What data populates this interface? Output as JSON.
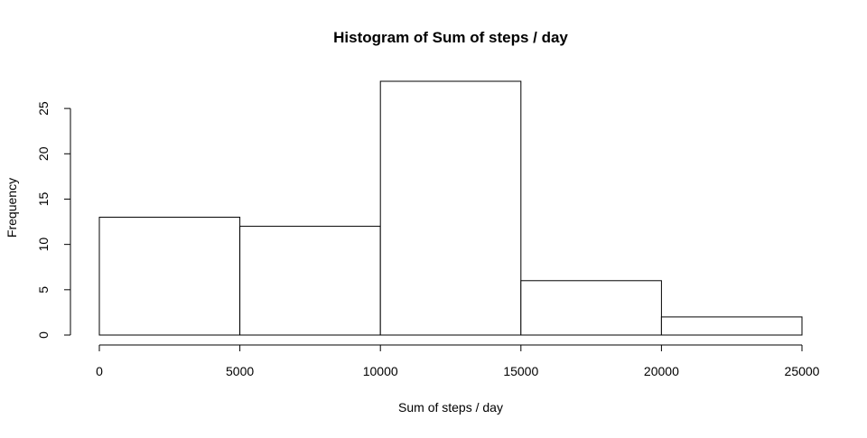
{
  "chart_data": {
    "type": "bar",
    "title": "Histogram of Sum of steps / day",
    "xlabel": "Sum of steps / day",
    "ylabel": "Frequency",
    "bins": [
      {
        "start": 0,
        "end": 5000,
        "value": 13
      },
      {
        "start": 5000,
        "end": 10000,
        "value": 12
      },
      {
        "start": 10000,
        "end": 15000,
        "value": 28
      },
      {
        "start": 15000,
        "end": 20000,
        "value": 6
      },
      {
        "start": 20000,
        "end": 25000,
        "value": 2
      }
    ],
    "xlim": [
      0,
      25000
    ],
    "ylim": [
      0,
      28
    ],
    "xticks": [
      0,
      5000,
      10000,
      15000,
      20000,
      25000
    ],
    "yticks": [
      0,
      5,
      10,
      15,
      20,
      25
    ],
    "grid": false,
    "legend": "none",
    "colors": {
      "bar_fill": "#ffffff",
      "bar_stroke": "#000000"
    }
  }
}
